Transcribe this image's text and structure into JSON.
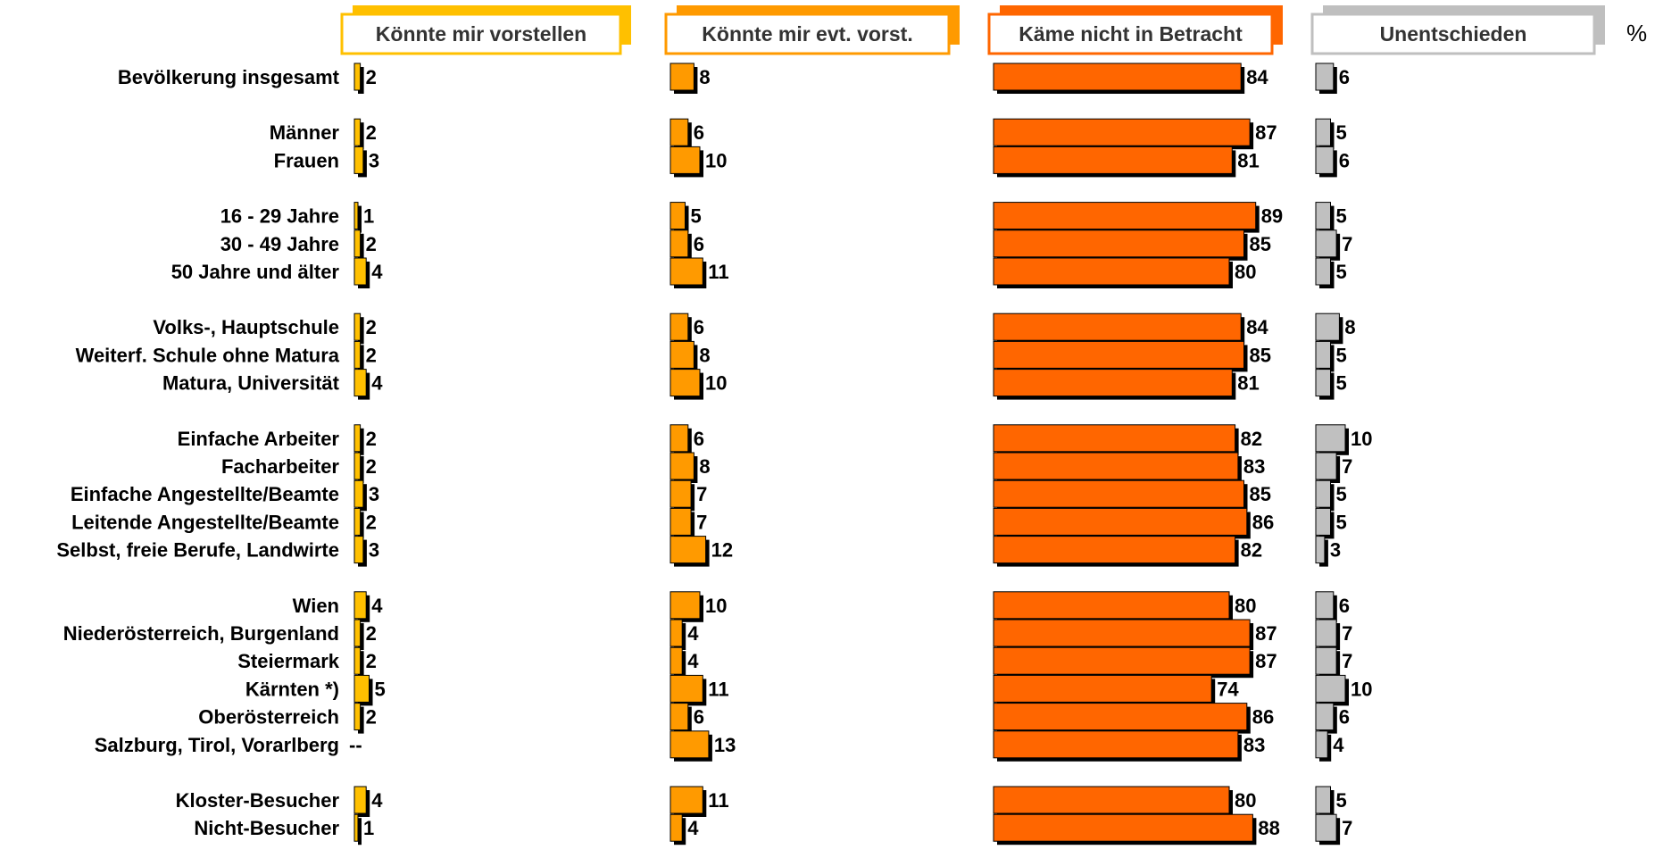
{
  "chart_data": {
    "type": "bar",
    "orientation": "horizontal",
    "unit_label": "%",
    "columns": [
      {
        "key": "vorstellen",
        "label": "Könnte mir vorstellen",
        "color": "#FFC000",
        "header_border": "#FFC000"
      },
      {
        "key": "evt",
        "label": "Könnte mir evt. vorst.",
        "color": "#FF9A00",
        "header_border": "#FF9A00"
      },
      {
        "key": "nicht",
        "label": "Käme nicht in Betracht",
        "color": "#FF6600",
        "header_border": "#FF6600"
      },
      {
        "key": "unentschieden",
        "label": "Unentschieden",
        "color": "#C0C0C0",
        "header_border": "#BFBFBF"
      }
    ],
    "groups": [
      {
        "rows": [
          {
            "label": "Bevölkerung insgesamt",
            "values": [
              2,
              8,
              84,
              6
            ]
          }
        ]
      },
      {
        "rows": [
          {
            "label": "Männer",
            "values": [
              2,
              6,
              87,
              5
            ]
          },
          {
            "label": "Frauen",
            "values": [
              3,
              10,
              81,
              6
            ]
          }
        ]
      },
      {
        "rows": [
          {
            "label": "16 - 29 Jahre",
            "values": [
              1,
              5,
              89,
              5
            ]
          },
          {
            "label": "30 - 49 Jahre",
            "values": [
              2,
              6,
              85,
              7
            ]
          },
          {
            "label": "50 Jahre und älter",
            "values": [
              4,
              11,
              80,
              5
            ]
          }
        ]
      },
      {
        "rows": [
          {
            "label": "Volks-, Hauptschule",
            "values": [
              2,
              6,
              84,
              8
            ]
          },
          {
            "label": "Weiterf. Schule ohne Matura",
            "values": [
              2,
              8,
              85,
              5
            ]
          },
          {
            "label": "Matura, Universität",
            "values": [
              4,
              10,
              81,
              5
            ]
          }
        ]
      },
      {
        "rows": [
          {
            "label": "Einfache Arbeiter",
            "values": [
              2,
              6,
              82,
              10
            ]
          },
          {
            "label": "Facharbeiter",
            "values": [
              2,
              8,
              83,
              7
            ]
          },
          {
            "label": "Einfache Angestellte/Beamte",
            "values": [
              3,
              7,
              85,
              5
            ]
          },
          {
            "label": "Leitende Angestellte/Beamte",
            "values": [
              2,
              7,
              86,
              5
            ]
          },
          {
            "label": "Selbst, freie Berufe, Landwirte",
            "values": [
              3,
              12,
              82,
              3
            ]
          }
        ]
      },
      {
        "rows": [
          {
            "label": "Wien",
            "values": [
              4,
              10,
              80,
              6
            ]
          },
          {
            "label": "Niederösterreich, Burgenland",
            "values": [
              2,
              4,
              87,
              7
            ]
          },
          {
            "label": "Steiermark",
            "values": [
              2,
              4,
              87,
              7
            ]
          },
          {
            "label": "Kärnten *)",
            "values": [
              5,
              11,
              74,
              10
            ]
          },
          {
            "label": "Oberösterreich",
            "values": [
              2,
              6,
              86,
              6
            ]
          },
          {
            "label": "Salzburg, Tirol, Vorarlberg",
            "values": [
              null,
              13,
              83,
              4
            ],
            "missing_text": [
              "--",
              null,
              null,
              null
            ]
          }
        ]
      },
      {
        "rows": [
          {
            "label": "Kloster-Besucher",
            "values": [
              4,
              11,
              80,
              5
            ]
          },
          {
            "label": "Nicht-Besucher",
            "values": [
              1,
              4,
              88,
              7
            ]
          }
        ]
      }
    ]
  }
}
